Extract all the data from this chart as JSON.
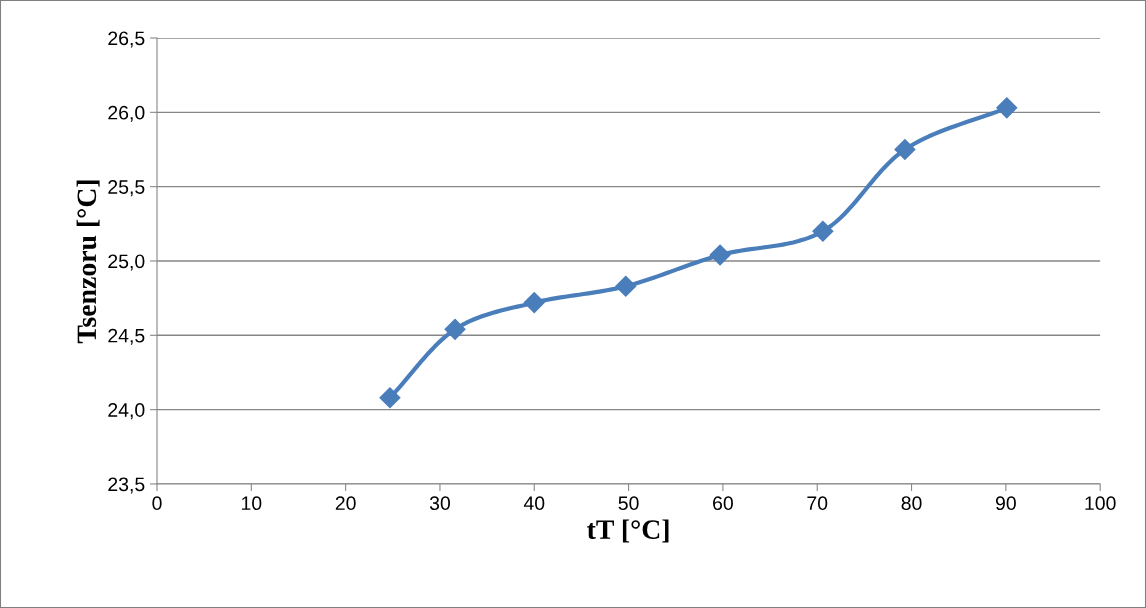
{
  "chart_data": {
    "type": "line",
    "xlabel": "tT [°C]",
    "ylabel": "Tsenzoru [°C]",
    "x": [
      24.7,
      31.6,
      40.0,
      49.7,
      59.7,
      70.6,
      79.3,
      90.1
    ],
    "series": [
      {
        "color": "#4a7ebb",
        "values": [
          24.08,
          24.54,
          24.72,
          24.83,
          25.04,
          25.2,
          25.75,
          26.03
        ]
      }
    ],
    "xlim": [
      0,
      100
    ],
    "xticks": [
      0,
      10,
      20,
      30,
      40,
      50,
      60,
      70,
      80,
      90,
      100
    ],
    "ylim": [
      23.5,
      26.5
    ],
    "yticks": [
      {
        "value": 23.5,
        "label": "23,5"
      },
      {
        "value": 24.0,
        "label": "24,0"
      },
      {
        "value": 24.5,
        "label": "24,5"
      },
      {
        "value": 25.0,
        "label": "25,0"
      },
      {
        "value": 25.5,
        "label": "25,5"
      },
      {
        "value": 26.0,
        "label": "26,0"
      },
      {
        "value": 26.5,
        "label": "26,5"
      }
    ],
    "grid": "y",
    "marker": "diamond",
    "line_style": "solid",
    "legend": false
  }
}
